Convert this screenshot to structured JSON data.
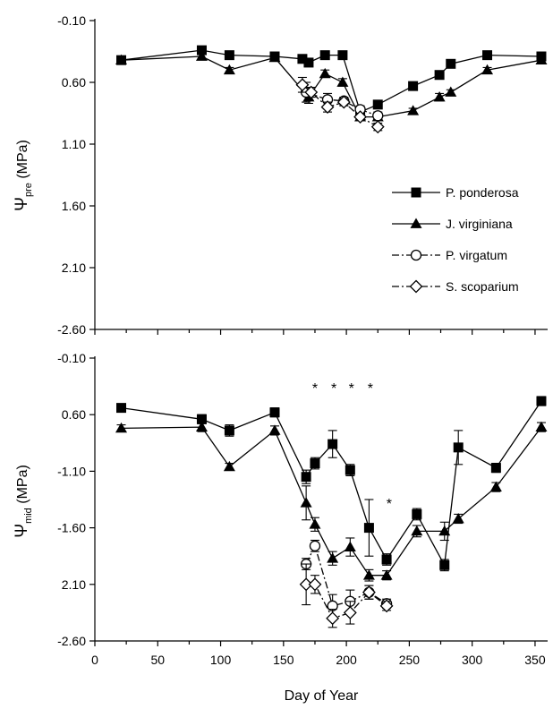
{
  "chart_data": [
    {
      "type": "line",
      "ylabel": "Ψpre (MPa)",
      "ylabel_main": "Ψ",
      "ylabel_sub": "pre",
      "ylabel_unit": "(MPa)",
      "y_tick_labels": [
        "-0.10",
        "0.60",
        "1.10",
        "1.60",
        "2.10",
        "-2.60"
      ],
      "y_tick_values": [
        0.1,
        0.6,
        1.1,
        1.6,
        2.1,
        2.6
      ],
      "ylim": [
        0.1,
        2.6
      ],
      "xlim": [
        0,
        360
      ],
      "y_inverted": true,
      "grid": false,
      "legend": {
        "position": "middle-right",
        "entries": [
          "P. ponderosa",
          "J. virginiana",
          "P. virgatum",
          "S. scoparium"
        ]
      },
      "series": [
        {
          "name": "P. ponderosa",
          "marker": "filled-square",
          "line": "solid",
          "x": [
            21,
            85,
            107,
            143,
            165,
            170,
            183,
            197,
            211,
            225,
            253,
            274,
            283,
            312,
            355
          ],
          "y": [
            0.42,
            0.34,
            0.38,
            0.39,
            0.41,
            0.44,
            0.38,
            0.38,
            0.84,
            0.78,
            0.63,
            0.54,
            0.45,
            0.38,
            0.39
          ],
          "err": [
            0,
            0.03,
            0.02,
            0.02,
            0.02,
            0.03,
            0.02,
            0.03,
            0.03,
            0.03,
            0.02,
            0.02,
            0.03,
            0.02,
            0.02
          ]
        },
        {
          "name": "J. virginiana",
          "marker": "filled-triangle",
          "line": "solid",
          "x": [
            21,
            85,
            107,
            143,
            170,
            183,
            197,
            211,
            225,
            253,
            274,
            283,
            312,
            355
          ],
          "y": [
            0.42,
            0.39,
            0.5,
            0.4,
            0.72,
            0.53,
            0.6,
            0.88,
            0.88,
            0.83,
            0.72,
            0.68,
            0.5,
            0.42
          ],
          "err": [
            0,
            0.02,
            0.02,
            0.02,
            0.05,
            0.03,
            0.03,
            0.03,
            0.03,
            0.02,
            0.03,
            0.02,
            0.02,
            0.02
          ]
        },
        {
          "name": "P. virgatum",
          "marker": "open-circle",
          "line": "dash-dot",
          "x": [
            168,
            185,
            198,
            211,
            225
          ],
          "y": [
            0.68,
            0.74,
            0.75,
            0.82,
            0.87
          ],
          "err": [
            0.08,
            0.05,
            0.03,
            0.03,
            0.03
          ]
        },
        {
          "name": "S. scoparium",
          "marker": "open-diamond",
          "line": "dash-dot",
          "x": [
            165,
            172,
            185,
            198,
            211,
            225
          ],
          "y": [
            0.62,
            0.68,
            0.8,
            0.76,
            0.88,
            0.96
          ],
          "err": [
            0.06,
            0.04,
            0.04,
            0.03,
            0.03,
            0.03
          ]
        }
      ]
    },
    {
      "type": "line",
      "ylabel": "Ψmid (MPa)",
      "ylabel_main": "Ψ",
      "ylabel_sub": "mid",
      "ylabel_unit": "(MPa)",
      "xlabel": "Day of Year",
      "x_tick_labels": [
        "0",
        "50",
        "100",
        "150",
        "200",
        "250",
        "300",
        "350"
      ],
      "x_tick_values": [
        0,
        50,
        100,
        150,
        200,
        250,
        300,
        350
      ],
      "y_tick_labels": [
        "-0.10",
        "0.60",
        "-1.10",
        "-1.60",
        "2.10",
        "-2.60"
      ],
      "y_tick_values": [
        0.1,
        0.6,
        1.1,
        1.6,
        2.1,
        2.6
      ],
      "ylim": [
        0.1,
        2.6
      ],
      "xlim": [
        0,
        360
      ],
      "y_inverted": true,
      "grid": false,
      "annotations": [
        {
          "text": "*",
          "x": 175,
          "y": 0.36
        },
        {
          "text": "*",
          "x": 190,
          "y": 0.36
        },
        {
          "text": "*",
          "x": 204,
          "y": 0.36
        },
        {
          "text": "*",
          "x": 219,
          "y": 0.36
        },
        {
          "text": "*",
          "x": 234,
          "y": 1.38
        }
      ],
      "series": [
        {
          "name": "P. ponderosa",
          "marker": "filled-square",
          "line": "solid",
          "x": [
            21,
            85,
            107,
            143,
            168,
            175,
            189,
            203,
            218,
            232,
            256,
            278,
            289,
            319,
            355
          ],
          "y": [
            0.54,
            0.64,
            0.74,
            0.58,
            1.15,
            1.03,
            0.86,
            1.09,
            1.6,
            1.88,
            1.48,
            1.93,
            0.89,
            1.07,
            0.48
          ],
          "err": [
            0,
            0.04,
            0.05,
            0.04,
            0.06,
            0.05,
            0.12,
            0.05,
            0.25,
            0.05,
            0.05,
            0.05,
            0.15,
            0.04,
            0.04
          ]
        },
        {
          "name": "J. virginiana",
          "marker": "filled-triangle",
          "line": "solid",
          "x": [
            21,
            85,
            107,
            143,
            168,
            175,
            189,
            203,
            218,
            232,
            256,
            278,
            289,
            319,
            355
          ],
          "y": [
            0.72,
            0.71,
            1.06,
            0.74,
            1.38,
            1.57,
            1.87,
            1.77,
            2.02,
            2.02,
            1.63,
            1.63,
            1.52,
            1.24,
            0.71
          ],
          "err": [
            0.03,
            0.04,
            0.03,
            0.04,
            0.15,
            0.06,
            0.06,
            0.08,
            0.05,
            0.04,
            0.05,
            0.08,
            0.04,
            0.04,
            0.04
          ]
        },
        {
          "name": "P. virgatum",
          "marker": "open-circle",
          "line": "dash-dot",
          "x": [
            168,
            175,
            189,
            203,
            218,
            232
          ],
          "y": [
            1.92,
            1.76,
            2.29,
            2.25,
            2.17,
            2.27
          ],
          "err": [
            0.05,
            0.05,
            0.1,
            0.1,
            0.06,
            0.04
          ]
        },
        {
          "name": "S. scoparium",
          "marker": "open-diamond",
          "line": "dash-dot",
          "x": [
            168,
            175,
            189,
            203,
            218,
            232
          ],
          "y": [
            2.1,
            2.1,
            2.4,
            2.35,
            2.17,
            2.29
          ],
          "err": [
            0.18,
            0.08,
            0.08,
            0.1,
            0.06,
            0.04
          ]
        }
      ]
    }
  ]
}
